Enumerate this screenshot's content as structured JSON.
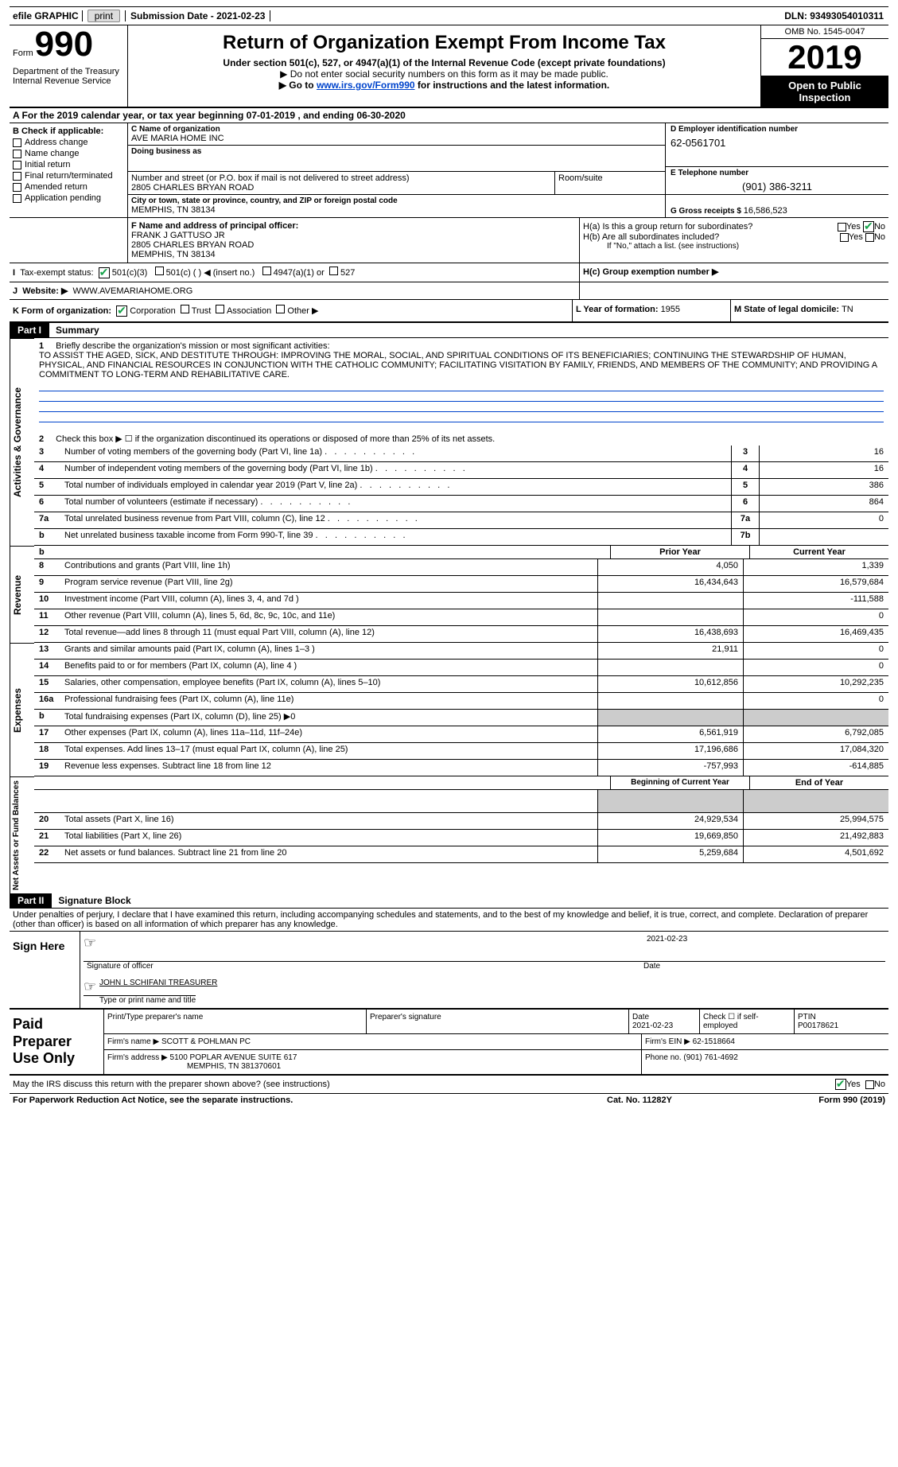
{
  "topbar": {
    "efile": "efile GRAPHIC",
    "print": "print",
    "subdate_label": "Submission Date - ",
    "subdate": "2021-02-23",
    "dln_label": "DLN: ",
    "dln": "93493054010311"
  },
  "header": {
    "formword": "Form",
    "formnum": "990",
    "dept": "Department of the Treasury\nInternal Revenue Service",
    "title": "Return of Organization Exempt From Income Tax",
    "sub1": "Under section 501(c), 527, or 4947(a)(1) of the Internal Revenue Code (except private foundations)",
    "sub2a": "▶ Do not enter social security numbers on this form as it may be made public.",
    "sub2b_pre": "▶ Go to ",
    "sub2b_link": "www.irs.gov/Form990",
    "sub2b_post": " for instructions and the latest information.",
    "omb": "OMB No. 1545-0047",
    "year": "2019",
    "inspect": "Open to Public Inspection"
  },
  "taxyear": {
    "a": "A For the 2019 calendar year, or tax year beginning ",
    "begin": "07-01-2019",
    "mid": "   , and ending ",
    "end": "06-30-2020"
  },
  "boxB": {
    "header": "B Check if applicable:",
    "items": [
      "Address change",
      "Name change",
      "Initial return",
      "Final return/terminated",
      "Amended return",
      "Application pending"
    ]
  },
  "boxC": {
    "name_lbl": "C Name of organization",
    "name": "AVE MARIA HOME INC",
    "dba_lbl": "Doing business as",
    "dba": "",
    "addr_lbl": "Number and street (or P.O. box if mail is not delivered to street address)",
    "addr": "2805 CHARLES BRYAN ROAD",
    "room_lbl": "Room/suite",
    "city_lbl": "City or town, state or province, country, and ZIP or foreign postal code",
    "city": "MEMPHIS, TN  38134"
  },
  "boxD": {
    "lbl": "D Employer identification number",
    "val": "62-0561701"
  },
  "boxE": {
    "lbl": "E Telephone number",
    "val": "(901) 386-3211"
  },
  "boxG": {
    "lbl": "G Gross receipts $ ",
    "val": "16,586,523"
  },
  "boxF": {
    "lbl": "F  Name and address of principal officer:",
    "name": "FRANK J GATTUSO JR",
    "addr1": "2805 CHARLES BRYAN ROAD",
    "addr2": "MEMPHIS, TN  38134"
  },
  "boxH": {
    "a_lbl": "H(a)  Is this a group return for subordinates?",
    "b_lbl": "H(b)  Are all subordinates included?",
    "b_note": "If \"No,\" attach a list. (see instructions)",
    "c_lbl": "H(c)  Group exemption number ▶",
    "yes": "Yes",
    "no": "No"
  },
  "rowI": {
    "lbl": "Tax-exempt status:",
    "opts": [
      "501(c)(3)",
      "501(c) (   ) ◀ (insert no.)",
      "4947(a)(1) or",
      "527"
    ]
  },
  "rowJ": {
    "lbl": "Website: ▶",
    "val": "WWW.AVEMARIAHOME.ORG"
  },
  "rowK": {
    "lbl": "K Form of organization:",
    "opts": [
      "Corporation",
      "Trust",
      "Association",
      "Other ▶"
    ]
  },
  "rowL": {
    "lbl": "L Year of formation: ",
    "val": "1955"
  },
  "rowM": {
    "lbl": "M State of legal domicile: ",
    "val": "TN"
  },
  "part1": {
    "tab": "Part I",
    "title": "Summary"
  },
  "summary": {
    "line1_lbl": "Briefly describe the organization's mission or most significant activities:",
    "line1_val": "TO ASSIST THE AGED, SICK, AND DESTITUTE THROUGH: IMPROVING THE MORAL, SOCIAL, AND SPIRITUAL CONDITIONS OF ITS BENEFICIARIES; CONTINUING THE STEWARDSHIP OF HUMAN, PHYSICAL, AND FINANCIAL RESOURCES IN CONJUNCTION WITH THE CATHOLIC COMMUNITY; FACILITATING VISITATION BY FAMILY, FRIENDS, AND MEMBERS OF THE COMMUNITY; AND PROVIDING A COMMITMENT TO LONG-TERM AND REHABILITATIVE CARE.",
    "line2": "Check this box ▶ ☐ if the organization discontinued its operations or disposed of more than 25% of its net assets."
  },
  "gov_rows": [
    {
      "n": "3",
      "txt": "Number of voting members of the governing body (Part VI, line 1a)",
      "cell": "3",
      "val": "16"
    },
    {
      "n": "4",
      "txt": "Number of independent voting members of the governing body (Part VI, line 1b)",
      "cell": "4",
      "val": "16"
    },
    {
      "n": "5",
      "txt": "Total number of individuals employed in calendar year 2019 (Part V, line 2a)",
      "cell": "5",
      "val": "386"
    },
    {
      "n": "6",
      "txt": "Total number of volunteers (estimate if necessary)",
      "cell": "6",
      "val": "864"
    },
    {
      "n": "7a",
      "txt": "Total unrelated business revenue from Part VIII, column (C), line 12",
      "cell": "7a",
      "val": "0"
    },
    {
      "n": "b",
      "txt": "Net unrelated business taxable income from Form 990-T, line 39",
      "cell": "7b",
      "val": ""
    }
  ],
  "two_col": {
    "h1": "Prior Year",
    "h2": "Current Year"
  },
  "rev_rows": [
    {
      "n": "8",
      "txt": "Contributions and grants (Part VIII, line 1h)",
      "c1": "4,050",
      "c2": "1,339"
    },
    {
      "n": "9",
      "txt": "Program service revenue (Part VIII, line 2g)",
      "c1": "16,434,643",
      "c2": "16,579,684"
    },
    {
      "n": "10",
      "txt": "Investment income (Part VIII, column (A), lines 3, 4, and 7d )",
      "c1": "",
      "c2": "-111,588"
    },
    {
      "n": "11",
      "txt": "Other revenue (Part VIII, column (A), lines 5, 6d, 8c, 9c, 10c, and 11e)",
      "c1": "",
      "c2": "0"
    },
    {
      "n": "12",
      "txt": "Total revenue—add lines 8 through 11 (must equal Part VIII, column (A), line 12)",
      "c1": "16,438,693",
      "c2": "16,469,435"
    }
  ],
  "exp_rows": [
    {
      "n": "13",
      "txt": "Grants and similar amounts paid (Part IX, column (A), lines 1–3 )",
      "c1": "21,911",
      "c2": "0"
    },
    {
      "n": "14",
      "txt": "Benefits paid to or for members (Part IX, column (A), line 4 )",
      "c1": "",
      "c2": "0"
    },
    {
      "n": "15",
      "txt": "Salaries, other compensation, employee benefits (Part IX, column (A), lines 5–10)",
      "c1": "10,612,856",
      "c2": "10,292,235"
    },
    {
      "n": "16a",
      "txt": "Professional fundraising fees (Part IX, column (A), line 11e)",
      "c1": "",
      "c2": "0"
    },
    {
      "n": "b",
      "txt": "Total fundraising expenses (Part IX, column (D), line 25) ▶0",
      "c1": "shade",
      "c2": "shade"
    },
    {
      "n": "17",
      "txt": "Other expenses (Part IX, column (A), lines 11a–11d, 11f–24e)",
      "c1": "6,561,919",
      "c2": "6,792,085"
    },
    {
      "n": "18",
      "txt": "Total expenses. Add lines 13–17 (must equal Part IX, column (A), line 25)",
      "c1": "17,196,686",
      "c2": "17,084,320"
    },
    {
      "n": "19",
      "txt": "Revenue less expenses. Subtract line 18 from line 12",
      "c1": "-757,993",
      "c2": "-614,885"
    }
  ],
  "na_head": {
    "h1": "Beginning of Current Year",
    "h2": "End of Year"
  },
  "na_rows": [
    {
      "n": "20",
      "txt": "Total assets (Part X, line 16)",
      "c1": "24,929,534",
      "c2": "25,994,575"
    },
    {
      "n": "21",
      "txt": "Total liabilities (Part X, line 26)",
      "c1": "19,669,850",
      "c2": "21,492,883"
    },
    {
      "n": "22",
      "txt": "Net assets or fund balances. Subtract line 21 from line 20",
      "c1": "5,259,684",
      "c2": "4,501,692"
    }
  ],
  "part2": {
    "tab": "Part II",
    "title": "Signature Block"
  },
  "penalty": "Under penalties of perjury, I declare that I have examined this return, including accompanying schedules and statements, and to the best of my knowledge and belief, it is true, correct, and complete. Declaration of preparer (other than officer) is based on all information of which preparer has any knowledge.",
  "sign": {
    "left": "Sign Here",
    "date": "2021-02-23",
    "sig_lbl": "Signature of officer",
    "date_lbl": "Date",
    "name": "JOHN L SCHIFANI  TREASURER",
    "name_lbl": "Type or print name and title"
  },
  "paid": {
    "left": "Paid Preparer Use Only",
    "r1": {
      "c1_lbl": "Print/Type preparer's name",
      "c2_lbl": "Preparer's signature",
      "c3_lbl": "Date",
      "c3_val": "2021-02-23",
      "c4_lbl": "Check ☐ if self-employed",
      "c5_lbl": "PTIN",
      "c5_val": "P00178621"
    },
    "r2": {
      "c1_lbl": "Firm's name    ▶ ",
      "c1_val": "SCOTT & POHLMAN PC",
      "c2_lbl": "Firm's EIN ▶ ",
      "c2_val": "62-1518664"
    },
    "r3": {
      "c1_lbl": "Firm's address ▶ ",
      "c1_val": "5100 POPLAR AVENUE SUITE 617",
      "c1_val2": "MEMPHIS, TN  381370601",
      "c2_lbl": "Phone no. ",
      "c2_val": "(901) 761-4692"
    }
  },
  "discuss": {
    "txt": "May the IRS discuss this return with the preparer shown above? (see instructions)",
    "yes": "Yes",
    "no": "No"
  },
  "footer": {
    "left": "For Paperwork Reduction Act Notice, see the separate instructions.",
    "mid": "Cat. No. 11282Y",
    "right": "Form 990 (2019)"
  },
  "side_labels": {
    "gov": "Activities & Governance",
    "rev": "Revenue",
    "exp": "Expenses",
    "na": "Net Assets or Fund Balances"
  }
}
